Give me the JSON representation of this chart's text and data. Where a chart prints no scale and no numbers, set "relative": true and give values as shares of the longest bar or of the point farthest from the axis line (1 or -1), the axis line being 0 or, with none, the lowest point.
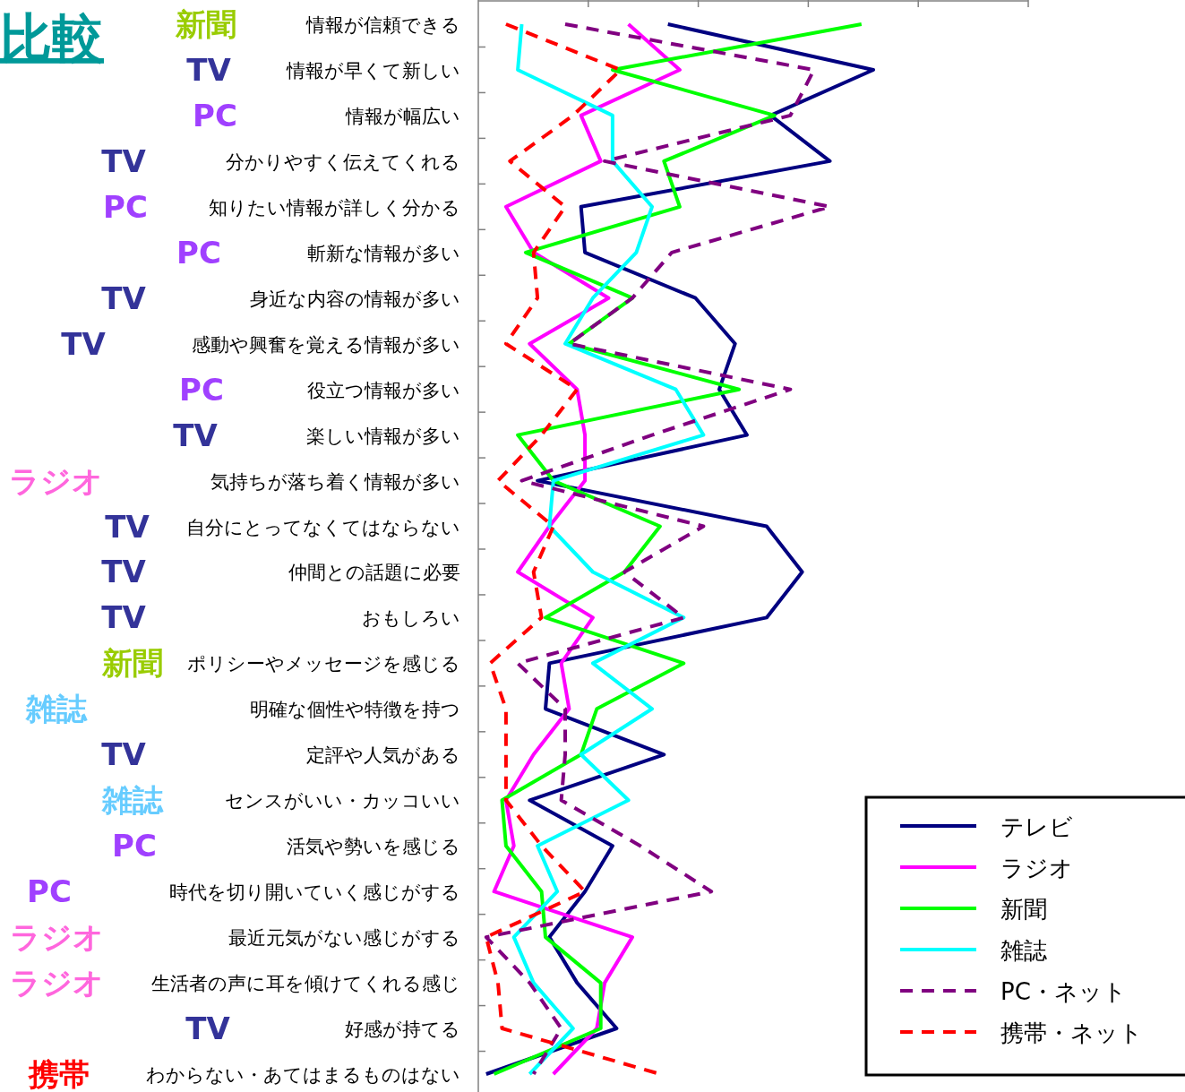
{
  "chart_data": {
    "type": "line",
    "orientation": "horizontal",
    "relative": true,
    "title": "比較",
    "legend": "bottom right",
    "marker": "none",
    "categories": [
      "情報が信頼できる",
      "情報が早くて新しい",
      "情報が幅広い",
      "分かりやすく伝えてくれる",
      "知りたい情報が詳しく分かる",
      "斬新な情報が多い",
      "身近な内容の情報が多い",
      "感動や興奮を覚える情報が多い",
      "役立つ情報が多い",
      "楽しい情報が多い",
      "気持ちが落ち着く情報が多い",
      "自分にとってなくてはならない",
      "仲間との話題に必要",
      "おもしろい",
      "ポリシーやメッセージを感じる",
      "明確な個性や特徴を持つ",
      "定評や人気がある",
      "センスがいい・カッコいい",
      "活気や勢いを感じる",
      "時代を切り開いていく感じがする",
      "最近元気がない感じがする",
      "生活者の声に耳を傾けてくれる感じ",
      "好感が持てる",
      "わからない・あてはまるものはない"
    ],
    "series": [
      {
        "name": "テレビ",
        "color": "#000080",
        "line_style": "solid",
        "values": [
          0.48,
          1,
          0.74,
          0.89,
          0.26,
          0.27,
          0.55,
          0.65,
          0.61,
          0.68,
          0.15,
          0.73,
          0.82,
          0.73,
          0.18,
          0.17,
          0.47,
          0.13,
          0.34,
          0.27,
          0.18,
          0.25,
          0.35,
          0.02
        ]
      },
      {
        "name": "ラジオ",
        "color": "#ff00ff",
        "line_style": "solid",
        "values": [
          0.38,
          0.51,
          0.26,
          0.31,
          0.07,
          0.14,
          0.33,
          0.13,
          0.25,
          0.27,
          0.27,
          0.18,
          0.1,
          0.29,
          0.21,
          0.23,
          0.14,
          0.07,
          0.09,
          0.04,
          0.39,
          0.32,
          0.3,
          0.19
        ]
      },
      {
        "name": "新聞",
        "color": "#00ff00",
        "line_style": "solid",
        "values": [
          0.97,
          0.34,
          0.75,
          0.47,
          0.51,
          0.12,
          0.39,
          0.23,
          0.66,
          0.1,
          0.19,
          0.46,
          0.37,
          0.17,
          0.52,
          0.3,
          0.26,
          0.06,
          0.07,
          0.16,
          0.17,
          0.31,
          0.31,
          0.04
        ]
      },
      {
        "name": "雑誌",
        "color": "#00ffff",
        "line_style": "solid",
        "values": [
          0.11,
          0.1,
          0.34,
          0.34,
          0.44,
          0.4,
          0.29,
          0.22,
          0.5,
          0.57,
          0.19,
          0.18,
          0.29,
          0.52,
          0.29,
          0.44,
          0.26,
          0.38,
          0.15,
          0.2,
          0.09,
          0.14,
          0.24,
          0.13
        ]
      },
      {
        "name": "PC・ネット",
        "color": "#800080",
        "line_style": "dashed",
        "values": [
          0.22,
          0.85,
          0.79,
          0.32,
          0.89,
          0.49,
          0.39,
          0.23,
          0.79,
          0.44,
          0.11,
          0.57,
          0.37,
          0.52,
          0.1,
          0.22,
          0.22,
          0.21,
          0.41,
          0.59,
          0.02,
          0.13,
          0.21,
          0.14
        ]
      },
      {
        "name": "携帯・ネット",
        "color": "#ff0000",
        "line_style": "dashed",
        "values": [
          0.07,
          0.36,
          0.24,
          0.08,
          0.22,
          0.14,
          0.15,
          0.07,
          0.25,
          0.16,
          0.05,
          0.19,
          0.14,
          0.16,
          0.03,
          0.07,
          0.07,
          0.07,
          0.16,
          0.27,
          0.02,
          0.05,
          0.06,
          0.46
        ]
      }
    ],
    "annotations": [
      "新聞",
      "TV",
      "PC",
      "TV",
      "PC",
      "PC",
      "TV",
      "TV",
      "PC",
      "TV",
      "ラジオ",
      "TV",
      "TV",
      "TV",
      "新聞",
      "雑誌",
      "TV",
      "雑誌",
      "PC",
      "PC",
      "ラジオ",
      "ラジオ",
      "TV",
      "携帯"
    ]
  }
}
